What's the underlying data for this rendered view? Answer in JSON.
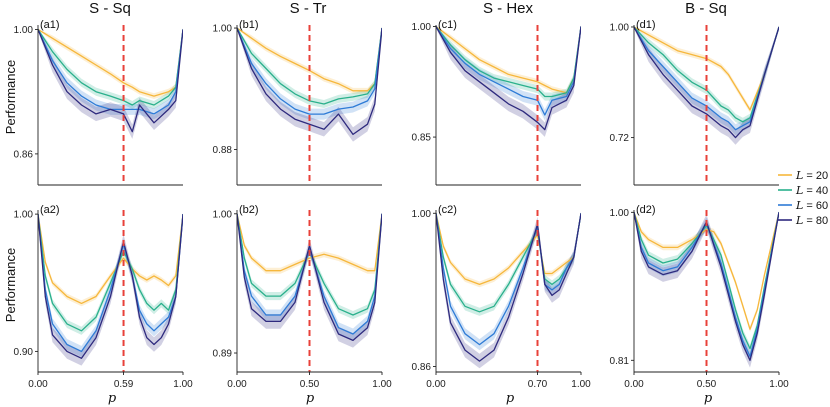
{
  "figure": {
    "ylabel_top": "Performance",
    "ylabel_bottom": "Performance",
    "xlabel": "p"
  },
  "legend": {
    "symbol": "L",
    "entries": [
      {
        "L": 20,
        "value_text": "= 20",
        "color": "#f6b73c"
      },
      {
        "L": 40,
        "value_text": "= 40",
        "color": "#2ab08c"
      },
      {
        "L": 60,
        "value_text": "= 60",
        "color": "#2e7bd6"
      },
      {
        "L": 80,
        "value_text": "= 80",
        "color": "#2e2a7e"
      }
    ]
  },
  "chart_data": [
    {
      "type": "line",
      "column_title": "S - Sq",
      "panel_label": "(a1)",
      "xlim": [
        0,
        1
      ],
      "ylim": [
        0.825,
        1.005
      ],
      "yticks": [
        "1.00",
        "0.86"
      ],
      "ytick_values": [
        1.0,
        0.86
      ],
      "xticks": [],
      "vline_x": 0.59,
      "x": [
        0,
        0.1,
        0.2,
        0.3,
        0.4,
        0.5,
        0.59,
        0.65,
        0.7,
        0.8,
        0.9,
        0.95,
        1.0
      ],
      "series": [
        {
          "L": 20,
          "values": [
            1.0,
            0.99,
            0.98,
            0.97,
            0.96,
            0.95,
            0.94,
            0.935,
            0.93,
            0.925,
            0.93,
            0.935,
            1.0
          ]
        },
        {
          "L": 40,
          "values": [
            1.0,
            0.975,
            0.955,
            0.94,
            0.93,
            0.925,
            0.92,
            0.915,
            0.92,
            0.915,
            0.925,
            0.935,
            1.0
          ]
        },
        {
          "L": 60,
          "values": [
            1.0,
            0.965,
            0.94,
            0.925,
            0.915,
            0.91,
            0.91,
            0.91,
            0.91,
            0.905,
            0.915,
            0.93,
            1.0
          ]
        },
        {
          "L": 80,
          "values": [
            1.0,
            0.96,
            0.93,
            0.915,
            0.905,
            0.91,
            0.905,
            0.885,
            0.915,
            0.895,
            0.91,
            0.92,
            1.0
          ]
        }
      ]
    },
    {
      "type": "line",
      "column_title": "S - Tr",
      "panel_label": "(b1)",
      "xlim": [
        0,
        1
      ],
      "ylim": [
        0.845,
        1.003
      ],
      "yticks": [
        "1.00",
        "0.88"
      ],
      "ytick_values": [
        1.0,
        0.88
      ],
      "xticks": [],
      "vline_x": 0.5,
      "x": [
        0,
        0.1,
        0.2,
        0.3,
        0.4,
        0.5,
        0.6,
        0.7,
        0.8,
        0.9,
        0.95,
        1.0
      ],
      "series": [
        {
          "L": 20,
          "values": [
            1.0,
            0.99,
            0.98,
            0.972,
            0.965,
            0.958,
            0.95,
            0.945,
            0.938,
            0.938,
            0.945,
            1.0
          ]
        },
        {
          "L": 40,
          "values": [
            1.0,
            0.975,
            0.96,
            0.945,
            0.935,
            0.928,
            0.925,
            0.93,
            0.932,
            0.935,
            0.945,
            1.0
          ]
        },
        {
          "L": 60,
          "values": [
            1.0,
            0.965,
            0.945,
            0.93,
            0.92,
            0.915,
            0.915,
            0.92,
            0.922,
            0.928,
            0.94,
            1.0
          ]
        },
        {
          "L": 80,
          "values": [
            1.0,
            0.96,
            0.935,
            0.92,
            0.91,
            0.905,
            0.9,
            0.915,
            0.895,
            0.905,
            0.925,
            1.0
          ]
        }
      ]
    },
    {
      "type": "line",
      "column_title": "S - Hex",
      "panel_label": "(c1)",
      "xlim": [
        0,
        1
      ],
      "ylim": [
        0.785,
        1.002
      ],
      "yticks": [
        "1.00",
        "0.85"
      ],
      "ytick_values": [
        1.0,
        0.85
      ],
      "xticks": [],
      "vline_x": 0.7,
      "x": [
        0,
        0.1,
        0.2,
        0.3,
        0.4,
        0.5,
        0.6,
        0.7,
        0.75,
        0.8,
        0.9,
        0.95,
        1.0
      ],
      "series": [
        {
          "L": 20,
          "values": [
            1.0,
            0.985,
            0.97,
            0.955,
            0.945,
            0.935,
            0.93,
            0.925,
            0.92,
            0.915,
            0.91,
            0.93,
            1.0
          ]
        },
        {
          "L": 40,
          "values": [
            1.0,
            0.975,
            0.955,
            0.94,
            0.93,
            0.925,
            0.92,
            0.915,
            0.905,
            0.905,
            0.91,
            0.93,
            1.0
          ]
        },
        {
          "L": 60,
          "values": [
            1.0,
            0.97,
            0.95,
            0.935,
            0.925,
            0.915,
            0.905,
            0.9,
            0.88,
            0.9,
            0.905,
            0.925,
            1.0
          ]
        },
        {
          "L": 80,
          "values": [
            1.0,
            0.965,
            0.94,
            0.925,
            0.91,
            0.895,
            0.885,
            0.87,
            0.86,
            0.89,
            0.9,
            0.92,
            1.0
          ]
        }
      ]
    },
    {
      "type": "line",
      "column_title": "B - Sq",
      "panel_label": "(d1)",
      "xlim": [
        0,
        1
      ],
      "ylim": [
        0.6,
        1.005
      ],
      "yticks": [
        "1.00",
        "0.72"
      ],
      "ytick_values": [
        1.0,
        0.72
      ],
      "xticks": [],
      "vline_x": 0.5,
      "x": [
        0,
        0.1,
        0.2,
        0.3,
        0.4,
        0.5,
        0.6,
        0.65,
        0.7,
        0.75,
        0.8,
        0.9,
        1.0
      ],
      "series": [
        {
          "L": 20,
          "values": [
            1.0,
            0.98,
            0.96,
            0.94,
            0.93,
            0.92,
            0.9,
            0.88,
            0.85,
            0.82,
            0.79,
            0.88,
            1.0
          ]
        },
        {
          "L": 40,
          "values": [
            1.0,
            0.96,
            0.93,
            0.89,
            0.86,
            0.84,
            0.8,
            0.79,
            0.77,
            0.76,
            0.77,
            0.88,
            1.0
          ]
        },
        {
          "L": 60,
          "values": [
            1.0,
            0.94,
            0.9,
            0.86,
            0.82,
            0.8,
            0.77,
            0.76,
            0.74,
            0.75,
            0.76,
            0.88,
            1.0
          ]
        },
        {
          "L": 80,
          "values": [
            1.0,
            0.93,
            0.88,
            0.84,
            0.8,
            0.78,
            0.75,
            0.74,
            0.72,
            0.74,
            0.75,
            0.88,
            1.0
          ]
        }
      ]
    },
    {
      "type": "line",
      "column_title": "",
      "panel_label": "(a2)",
      "xlim": [
        0,
        1
      ],
      "ylim": [
        0.885,
        1.003
      ],
      "yticks": [
        "1.00",
        "0.90"
      ],
      "ytick_values": [
        1.0,
        0.9
      ],
      "xticks": [
        "0.00",
        "0.59",
        "1.00"
      ],
      "xtick_values": [
        0,
        0.59,
        1.0
      ],
      "vline_x": 0.59,
      "x": [
        0,
        0.05,
        0.1,
        0.2,
        0.3,
        0.4,
        0.5,
        0.59,
        0.65,
        0.7,
        0.75,
        0.8,
        0.85,
        0.9,
        0.95,
        1.0
      ],
      "series": [
        {
          "L": 20,
          "values": [
            1.0,
            0.965,
            0.95,
            0.94,
            0.935,
            0.94,
            0.955,
            0.968,
            0.96,
            0.955,
            0.952,
            0.955,
            0.952,
            0.948,
            0.955,
            1.0
          ]
        },
        {
          "L": 40,
          "values": [
            1.0,
            0.955,
            0.935,
            0.92,
            0.915,
            0.925,
            0.95,
            0.973,
            0.96,
            0.945,
            0.935,
            0.93,
            0.935,
            0.93,
            0.945,
            1.0
          ]
        },
        {
          "L": 60,
          "values": [
            1.0,
            0.945,
            0.92,
            0.905,
            0.9,
            0.915,
            0.945,
            0.978,
            0.955,
            0.93,
            0.92,
            0.915,
            0.92,
            0.925,
            0.94,
            1.0
          ]
        },
        {
          "L": 80,
          "values": [
            1.0,
            0.94,
            0.912,
            0.9,
            0.895,
            0.91,
            0.94,
            0.98,
            0.955,
            0.925,
            0.91,
            0.905,
            0.91,
            0.92,
            0.94,
            1.0
          ]
        }
      ]
    },
    {
      "type": "line",
      "column_title": "",
      "panel_label": "(b2)",
      "xlim": [
        0,
        1
      ],
      "ylim": [
        0.875,
        1.003
      ],
      "yticks": [
        "1.00",
        "0.89"
      ],
      "ytick_values": [
        1.0,
        0.89
      ],
      "xticks": [
        "0.00",
        "0.50",
        "1.00"
      ],
      "xtick_values": [
        0,
        0.5,
        1.0
      ],
      "vline_x": 0.5,
      "x": [
        0,
        0.05,
        0.1,
        0.2,
        0.3,
        0.4,
        0.5,
        0.6,
        0.7,
        0.8,
        0.9,
        0.95,
        1.0
      ],
      "series": [
        {
          "L": 20,
          "values": [
            1.0,
            0.975,
            0.965,
            0.955,
            0.955,
            0.96,
            0.965,
            0.968,
            0.965,
            0.96,
            0.955,
            0.955,
            1.0
          ]
        },
        {
          "L": 40,
          "values": [
            1.0,
            0.965,
            0.945,
            0.935,
            0.935,
            0.945,
            0.97,
            0.945,
            0.925,
            0.92,
            0.925,
            0.94,
            1.0
          ]
        },
        {
          "L": 60,
          "values": [
            1.0,
            0.955,
            0.935,
            0.92,
            0.92,
            0.935,
            0.972,
            0.935,
            0.91,
            0.905,
            0.915,
            0.935,
            1.0
          ]
        },
        {
          "L": 80,
          "values": [
            1.0,
            0.95,
            0.925,
            0.915,
            0.915,
            0.93,
            0.975,
            0.93,
            0.905,
            0.9,
            0.91,
            0.93,
            1.0
          ]
        }
      ]
    },
    {
      "type": "line",
      "column_title": "",
      "panel_label": "(c2)",
      "xlim": [
        0,
        1
      ],
      "ylim": [
        0.855,
        1.003
      ],
      "yticks": [
        "1.00",
        "0.86"
      ],
      "ytick_values": [
        1.0,
        0.86
      ],
      "xticks": [
        "0.00",
        "0.70",
        "1.00"
      ],
      "xtick_values": [
        0,
        0.7,
        1.0
      ],
      "vline_x": 0.7,
      "x": [
        0,
        0.05,
        0.1,
        0.2,
        0.3,
        0.4,
        0.5,
        0.6,
        0.7,
        0.75,
        0.8,
        0.85,
        0.9,
        0.95,
        1.0
      ],
      "series": [
        {
          "L": 20,
          "values": [
            1.0,
            0.97,
            0.955,
            0.94,
            0.935,
            0.94,
            0.95,
            0.965,
            0.98,
            0.945,
            0.945,
            0.95,
            0.955,
            0.96,
            1.0
          ]
        },
        {
          "L": 40,
          "values": [
            1.0,
            0.96,
            0.935,
            0.915,
            0.91,
            0.915,
            0.935,
            0.96,
            0.985,
            0.94,
            0.935,
            0.94,
            0.95,
            0.96,
            1.0
          ]
        },
        {
          "L": 60,
          "values": [
            1.0,
            0.95,
            0.915,
            0.89,
            0.88,
            0.89,
            0.915,
            0.95,
            0.988,
            0.935,
            0.93,
            0.935,
            0.95,
            0.96,
            1.0
          ]
        },
        {
          "L": 80,
          "values": [
            1.0,
            0.94,
            0.9,
            0.875,
            0.865,
            0.875,
            0.905,
            0.945,
            0.99,
            0.935,
            0.925,
            0.93,
            0.945,
            0.96,
            1.0
          ]
        }
      ]
    },
    {
      "type": "line",
      "column_title": "",
      "panel_label": "(d2)",
      "xlim": [
        0,
        1
      ],
      "ylim": [
        0.795,
        1.003
      ],
      "yticks": [
        "1.00",
        "0.81"
      ],
      "ytick_values": [
        1.0,
        0.81
      ],
      "xticks": [
        "0.00",
        "0.50",
        "1.00"
      ],
      "xtick_values": [
        0,
        0.5,
        1.0
      ],
      "vline_x": 0.5,
      "x": [
        0,
        0.05,
        0.1,
        0.2,
        0.3,
        0.4,
        0.5,
        0.55,
        0.6,
        0.65,
        0.7,
        0.75,
        0.8,
        0.85,
        0.9,
        1.0
      ],
      "series": [
        {
          "L": 20,
          "values": [
            1.0,
            0.975,
            0.965,
            0.955,
            0.955,
            0.965,
            0.978,
            0.975,
            0.96,
            0.935,
            0.91,
            0.88,
            0.85,
            0.875,
            0.92,
            1.0
          ]
        },
        {
          "L": 40,
          "values": [
            1.0,
            0.965,
            0.945,
            0.935,
            0.94,
            0.96,
            0.983,
            0.965,
            0.945,
            0.91,
            0.875,
            0.845,
            0.825,
            0.855,
            0.905,
            1.0
          ]
        },
        {
          "L": 60,
          "values": [
            1.0,
            0.955,
            0.935,
            0.925,
            0.93,
            0.955,
            0.986,
            0.96,
            0.935,
            0.9,
            0.865,
            0.835,
            0.815,
            0.85,
            0.9,
            1.0
          ]
        },
        {
          "L": 80,
          "values": [
            1.0,
            0.95,
            0.93,
            0.92,
            0.925,
            0.95,
            0.988,
            0.958,
            0.93,
            0.895,
            0.86,
            0.83,
            0.81,
            0.845,
            0.895,
            1.0
          ]
        }
      ]
    }
  ]
}
